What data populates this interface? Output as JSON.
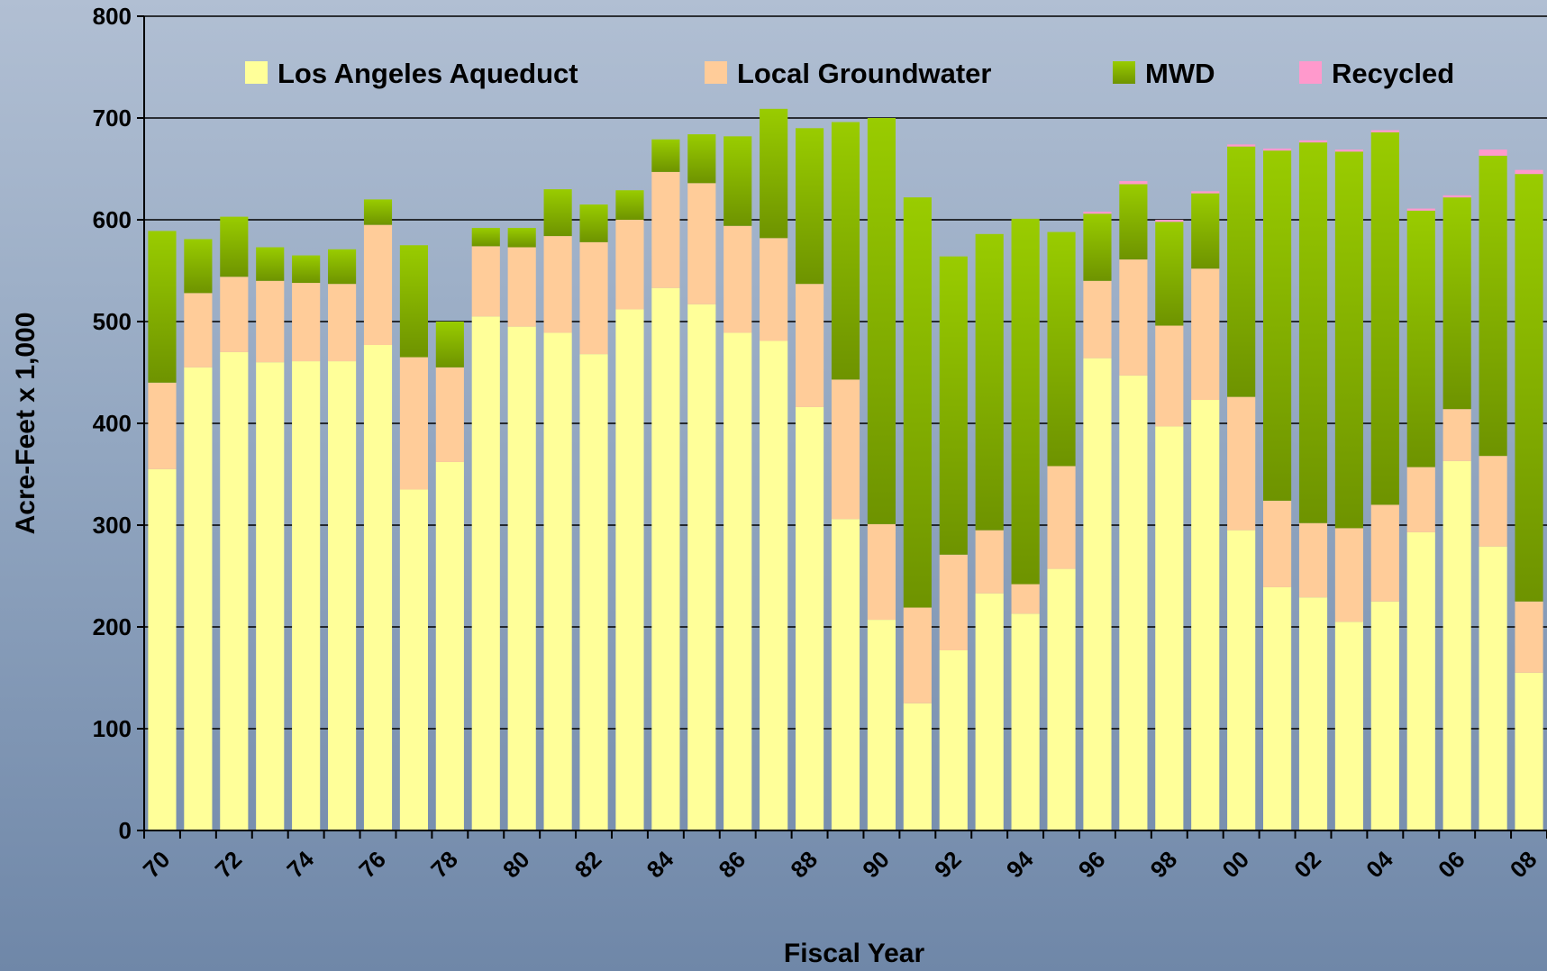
{
  "chart_data": {
    "type": "bar",
    "stacked": true,
    "title": "",
    "xlabel": "Fiscal Year",
    "ylabel": "Acre-Feet x 1,000",
    "ylim": [
      0,
      800
    ],
    "yticks": [
      0,
      100,
      200,
      300,
      400,
      500,
      600,
      700,
      800
    ],
    "grid": true,
    "legend_position": "top",
    "categories": [
      "70",
      "71",
      "72",
      "73",
      "74",
      "75",
      "76",
      "77",
      "78",
      "79",
      "80",
      "81",
      "82",
      "83",
      "84",
      "85",
      "86",
      "87",
      "88",
      "89",
      "90",
      "91",
      "92",
      "93",
      "94",
      "95",
      "96",
      "97",
      "98",
      "99",
      "00",
      "01",
      "02",
      "03",
      "04",
      "05",
      "06",
      "07",
      "08"
    ],
    "xtick_labels": [
      "70",
      "72",
      "74",
      "76",
      "78",
      "80",
      "82",
      "84",
      "86",
      "88",
      "90",
      "92",
      "94",
      "96",
      "98",
      "00",
      "02",
      "04",
      "06",
      "08"
    ],
    "series": [
      {
        "name": "Los Angeles Aqueduct",
        "color": "#ffff99",
        "values": [
          355,
          455,
          470,
          460,
          461,
          461,
          477,
          335,
          362,
          505,
          495,
          489,
          468,
          512,
          533,
          517,
          489,
          481,
          416,
          306,
          207,
          125,
          177,
          233,
          213,
          257,
          464,
          447,
          397,
          423,
          295,
          239,
          229,
          205,
          225,
          293,
          363,
          279,
          155
        ]
      },
      {
        "name": "Local Groundwater",
        "color": "#ffcc99",
        "values": [
          85,
          73,
          74,
          80,
          77,
          76,
          118,
          130,
          93,
          69,
          78,
          95,
          110,
          88,
          114,
          119,
          105,
          101,
          121,
          137,
          94,
          94,
          94,
          62,
          29,
          101,
          76,
          114,
          99,
          129,
          131,
          85,
          73,
          92,
          95,
          64,
          51,
          89,
          70
        ]
      },
      {
        "name": "MWD",
        "color": "#99cc00",
        "values": [
          149,
          53,
          59,
          33,
          27,
          34,
          25,
          110,
          45,
          18,
          19,
          46,
          37,
          29,
          32,
          48,
          88,
          127,
          153,
          253,
          399,
          403,
          293,
          291,
          359,
          230,
          66,
          74,
          102,
          74,
          246,
          344,
          374,
          370,
          366,
          252,
          208,
          295,
          420
        ]
      },
      {
        "name": "Recycled",
        "color": "#ff99cc",
        "values": [
          0,
          0,
          0,
          0,
          0,
          0,
          0,
          0,
          0,
          0,
          0,
          0,
          0,
          0,
          0,
          0,
          0,
          0,
          0,
          0,
          0,
          0,
          0,
          0,
          0,
          0,
          2,
          3,
          2,
          2,
          2,
          2,
          2,
          2,
          2,
          2,
          2,
          6,
          4
        ]
      }
    ]
  }
}
